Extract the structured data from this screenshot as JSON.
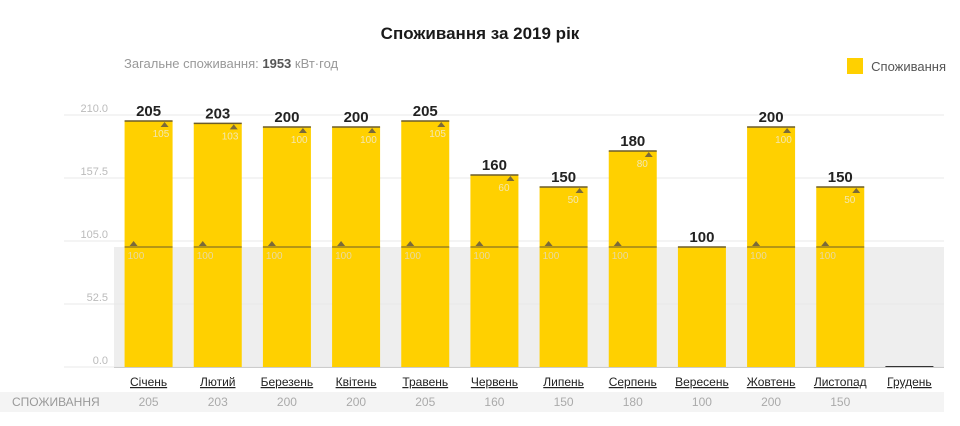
{
  "title": "Споживання за 2019 рік",
  "subtitle": {
    "label": "Загальне споживання:",
    "total": "1953",
    "unit": "кВт·год"
  },
  "colors": {
    "bar": "#ffd000",
    "band": "#eeeeee",
    "axis_text": "#bbbbbb",
    "marker": "#7a6a3a"
  },
  "chart_data": {
    "type": "bar",
    "categories": [
      "Січень",
      "Лютий",
      "Березень",
      "Квітень",
      "Травень",
      "Червень",
      "Липень",
      "Серпень",
      "Вересень",
      "Жовтень",
      "Листопад",
      "Грудень"
    ],
    "series": [
      {
        "name": "Споживання",
        "values": [
          205,
          203,
          200,
          200,
          205,
          160,
          150,
          180,
          100,
          200,
          150,
          null
        ]
      }
    ],
    "tier_values": [
      100,
      100,
      100,
      100,
      100,
      100,
      100,
      100,
      null,
      100,
      100,
      null
    ],
    "remainder_values": [
      105,
      103,
      100,
      100,
      105,
      60,
      50,
      80,
      null,
      100,
      50,
      null
    ],
    "threshold": 100,
    "yticks": [
      "0.0",
      "52.5",
      "105.0",
      "157.5",
      "210.0"
    ],
    "ylim": [
      0,
      210
    ],
    "legend": "top-right"
  },
  "table": {
    "row_label": "СПОЖИВАННЯ",
    "values": [
      "205",
      "203",
      "200",
      "200",
      "205",
      "160",
      "150",
      "180",
      "100",
      "200",
      "150",
      ""
    ]
  }
}
